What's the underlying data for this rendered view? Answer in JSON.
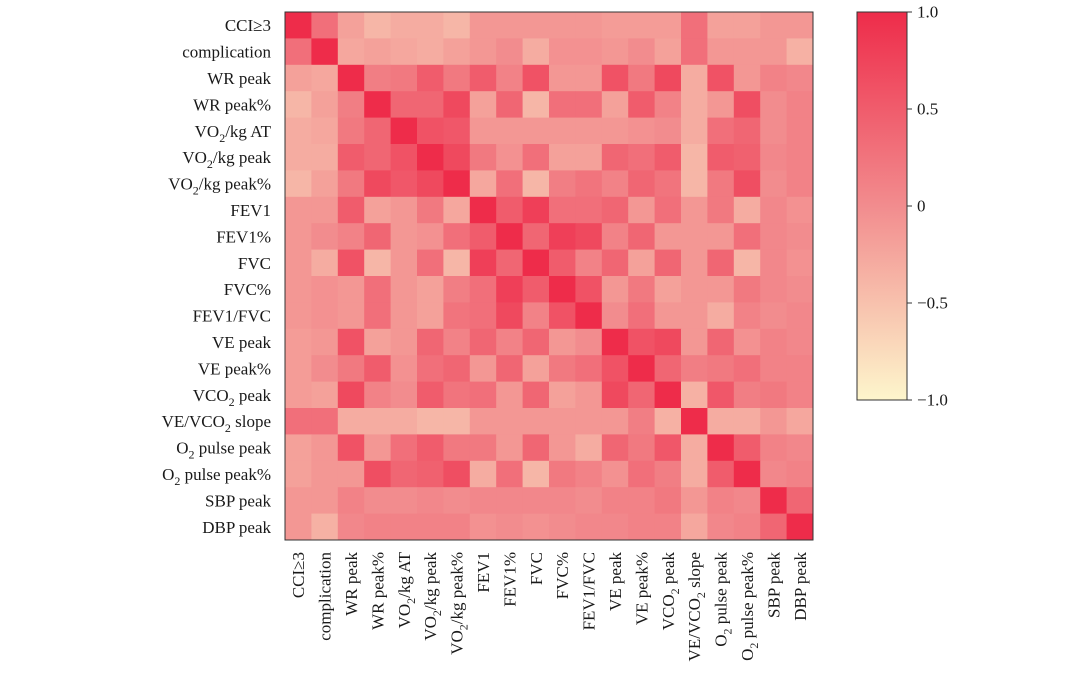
{
  "chart_data": {
    "type": "heatmap",
    "title": "",
    "xlabel": "",
    "ylabel": "",
    "labels": [
      "CCI≥3",
      "complication",
      "WR peak",
      "WR peak%",
      "VO₂/kg AT",
      "VO₂/kg peak",
      "VO₂/kg peak%",
      "FEV1",
      "FEV1%",
      "FVC",
      "FVC%",
      "FEV1/FVC",
      "VE peak",
      "VE peak%",
      "VCO₂ peak",
      "VE/VCO₂ slope",
      "O₂ pulse peak",
      "O₂ pulse peak%",
      "SBP peak",
      "DBP peak"
    ],
    "x_labels": [
      "CCI≥3",
      "complication",
      "WR peak",
      "WR peak%",
      "VO₂/kg AT",
      "VO₂/kg peak",
      "VO₂/kg peak%",
      "FEV1",
      "FEV1%",
      "FVC",
      "FVC%",
      "FEV1/FVC",
      "VE peak",
      "VE peak%",
      "VCO₂ peak",
      "VE/VCO₂ slope",
      "O₂ pulse peak",
      "O₂ pulse peak%",
      "SBP peak",
      "DBP peak"
    ],
    "y_labels": [
      "CCI≥3",
      "complication",
      "WR peak",
      "WR peak%",
      "VO₂/kg AT",
      "VO₂/kg peak",
      "VO₂/kg peak%",
      "FEV1",
      "FEV1%",
      "FVC",
      "FVC%",
      "FEV1/FVC",
      "VE peak",
      "VE peak%",
      "VCO₂ peak",
      "VE/VCO₂ slope",
      "O₂ pulse peak",
      "O₂ pulse peak%",
      "SBP peak",
      "DBP peak"
    ],
    "values": [
      [
        1.0,
        0.3,
        -0.2,
        -0.4,
        -0.3,
        -0.3,
        -0.4,
        -0.1,
        -0.1,
        -0.1,
        -0.1,
        -0.1,
        -0.15,
        -0.15,
        -0.15,
        0.3,
        -0.2,
        -0.2,
        -0.1,
        -0.1
      ],
      [
        0.3,
        1.0,
        -0.25,
        -0.2,
        -0.25,
        -0.3,
        -0.2,
        -0.1,
        0.0,
        -0.3,
        -0.05,
        -0.05,
        -0.1,
        0.0,
        -0.2,
        0.3,
        -0.1,
        -0.1,
        -0.1,
        -0.35
      ],
      [
        -0.2,
        -0.25,
        1.0,
        0.15,
        0.2,
        0.5,
        0.2,
        0.5,
        0.1,
        0.6,
        -0.1,
        -0.1,
        0.6,
        0.2,
        0.7,
        -0.3,
        0.6,
        -0.1,
        0.1,
        0.05
      ],
      [
        -0.4,
        -0.2,
        0.15,
        1.0,
        0.4,
        0.4,
        0.7,
        -0.2,
        0.4,
        -0.4,
        0.3,
        0.3,
        -0.2,
        0.5,
        0.1,
        -0.3,
        -0.1,
        0.65,
        0.0,
        0.1
      ],
      [
        -0.3,
        -0.25,
        0.2,
        0.4,
        1.0,
        0.6,
        0.55,
        -0.1,
        -0.1,
        -0.1,
        -0.1,
        -0.1,
        -0.1,
        -0.05,
        0.0,
        -0.3,
        0.3,
        0.4,
        0.0,
        0.1
      ],
      [
        -0.3,
        -0.3,
        0.5,
        0.4,
        0.6,
        1.0,
        0.7,
        0.2,
        -0.05,
        0.3,
        -0.2,
        -0.2,
        0.4,
        0.3,
        0.5,
        -0.4,
        0.5,
        0.45,
        0.05,
        0.1
      ],
      [
        -0.4,
        -0.2,
        0.2,
        0.7,
        0.55,
        0.7,
        1.0,
        -0.25,
        0.3,
        -0.4,
        0.15,
        0.25,
        0.1,
        0.4,
        0.25,
        -0.4,
        0.2,
        0.65,
        0.0,
        0.1
      ],
      [
        -0.1,
        -0.1,
        0.5,
        -0.2,
        -0.1,
        0.2,
        -0.25,
        1.0,
        0.5,
        0.8,
        0.3,
        0.3,
        0.4,
        -0.1,
        0.3,
        -0.1,
        0.2,
        -0.3,
        0.05,
        -0.05
      ],
      [
        -0.1,
        0.0,
        0.1,
        0.4,
        -0.1,
        -0.05,
        0.3,
        0.5,
        1.0,
        0.4,
        0.8,
        0.7,
        0.1,
        0.4,
        -0.1,
        -0.1,
        -0.1,
        0.3,
        0.05,
        0.0
      ],
      [
        -0.1,
        -0.3,
        0.6,
        -0.4,
        -0.1,
        0.3,
        -0.4,
        0.8,
        0.4,
        1.0,
        0.5,
        0.1,
        0.4,
        -0.2,
        0.4,
        -0.1,
        0.4,
        -0.4,
        0.05,
        -0.05
      ],
      [
        -0.1,
        -0.05,
        -0.1,
        0.3,
        -0.1,
        -0.2,
        0.15,
        0.3,
        0.8,
        0.5,
        1.0,
        0.6,
        -0.1,
        0.2,
        -0.2,
        -0.1,
        -0.1,
        0.2,
        0.05,
        0.0
      ],
      [
        -0.1,
        -0.05,
        -0.1,
        0.3,
        -0.1,
        -0.2,
        0.25,
        0.3,
        0.7,
        0.1,
        0.6,
        1.0,
        0.0,
        0.3,
        -0.1,
        -0.1,
        -0.3,
        0.1,
        0.0,
        0.05
      ],
      [
        -0.15,
        -0.1,
        0.6,
        -0.2,
        -0.1,
        0.4,
        0.1,
        0.4,
        0.1,
        0.4,
        -0.1,
        0.0,
        1.0,
        0.6,
        0.7,
        -0.1,
        0.4,
        -0.05,
        0.1,
        0.05
      ],
      [
        -0.15,
        0.0,
        0.2,
        0.5,
        -0.05,
        0.3,
        0.4,
        -0.1,
        0.4,
        -0.2,
        0.2,
        0.3,
        0.6,
        1.0,
        0.4,
        0.15,
        0.2,
        0.3,
        0.1,
        0.1
      ],
      [
        -0.15,
        -0.2,
        0.7,
        0.1,
        0.0,
        0.5,
        0.25,
        0.3,
        -0.1,
        0.4,
        -0.2,
        -0.1,
        0.7,
        0.4,
        1.0,
        -0.35,
        0.55,
        0.15,
        0.2,
        0.1
      ],
      [
        0.3,
        0.3,
        -0.3,
        -0.3,
        -0.3,
        -0.4,
        -0.4,
        -0.1,
        -0.1,
        -0.1,
        -0.1,
        -0.1,
        -0.1,
        0.15,
        -0.35,
        1.0,
        -0.3,
        -0.3,
        -0.1,
        -0.25
      ],
      [
        -0.2,
        -0.1,
        0.6,
        -0.1,
        0.3,
        0.5,
        0.2,
        0.2,
        -0.1,
        0.4,
        -0.1,
        -0.3,
        0.4,
        0.2,
        0.55,
        -0.3,
        1.0,
        0.5,
        0.1,
        0.05
      ],
      [
        -0.2,
        -0.1,
        -0.1,
        0.65,
        0.4,
        0.45,
        0.65,
        -0.3,
        0.3,
        -0.4,
        0.2,
        0.1,
        -0.05,
        0.3,
        0.15,
        -0.3,
        0.5,
        1.0,
        0.05,
        0.1
      ],
      [
        -0.1,
        -0.1,
        0.1,
        0.0,
        0.0,
        0.05,
        0.0,
        0.05,
        0.05,
        0.05,
        0.05,
        0.0,
        0.1,
        0.1,
        0.2,
        -0.1,
        0.1,
        0.05,
        1.0,
        0.4
      ],
      [
        -0.1,
        -0.35,
        0.05,
        0.1,
        0.1,
        0.1,
        0.1,
        -0.05,
        0.0,
        -0.05,
        0.0,
        0.05,
        0.05,
        0.1,
        0.1,
        -0.25,
        0.05,
        0.1,
        0.4,
        1.0
      ]
    ],
    "colorbar": {
      "range": [
        -1.0,
        1.0
      ],
      "ticks": [
        1.0,
        0.5,
        0,
        -0.5,
        -1.0
      ],
      "tick_labels": [
        "1.0",
        "0.5",
        "0",
        "−0.5",
        "−1.0"
      ],
      "colors": {
        "low": "#fdf6cc",
        "mid": "#f28c8e",
        "high": "#ee2c4a"
      }
    },
    "grid": false,
    "legend_position": "right"
  }
}
